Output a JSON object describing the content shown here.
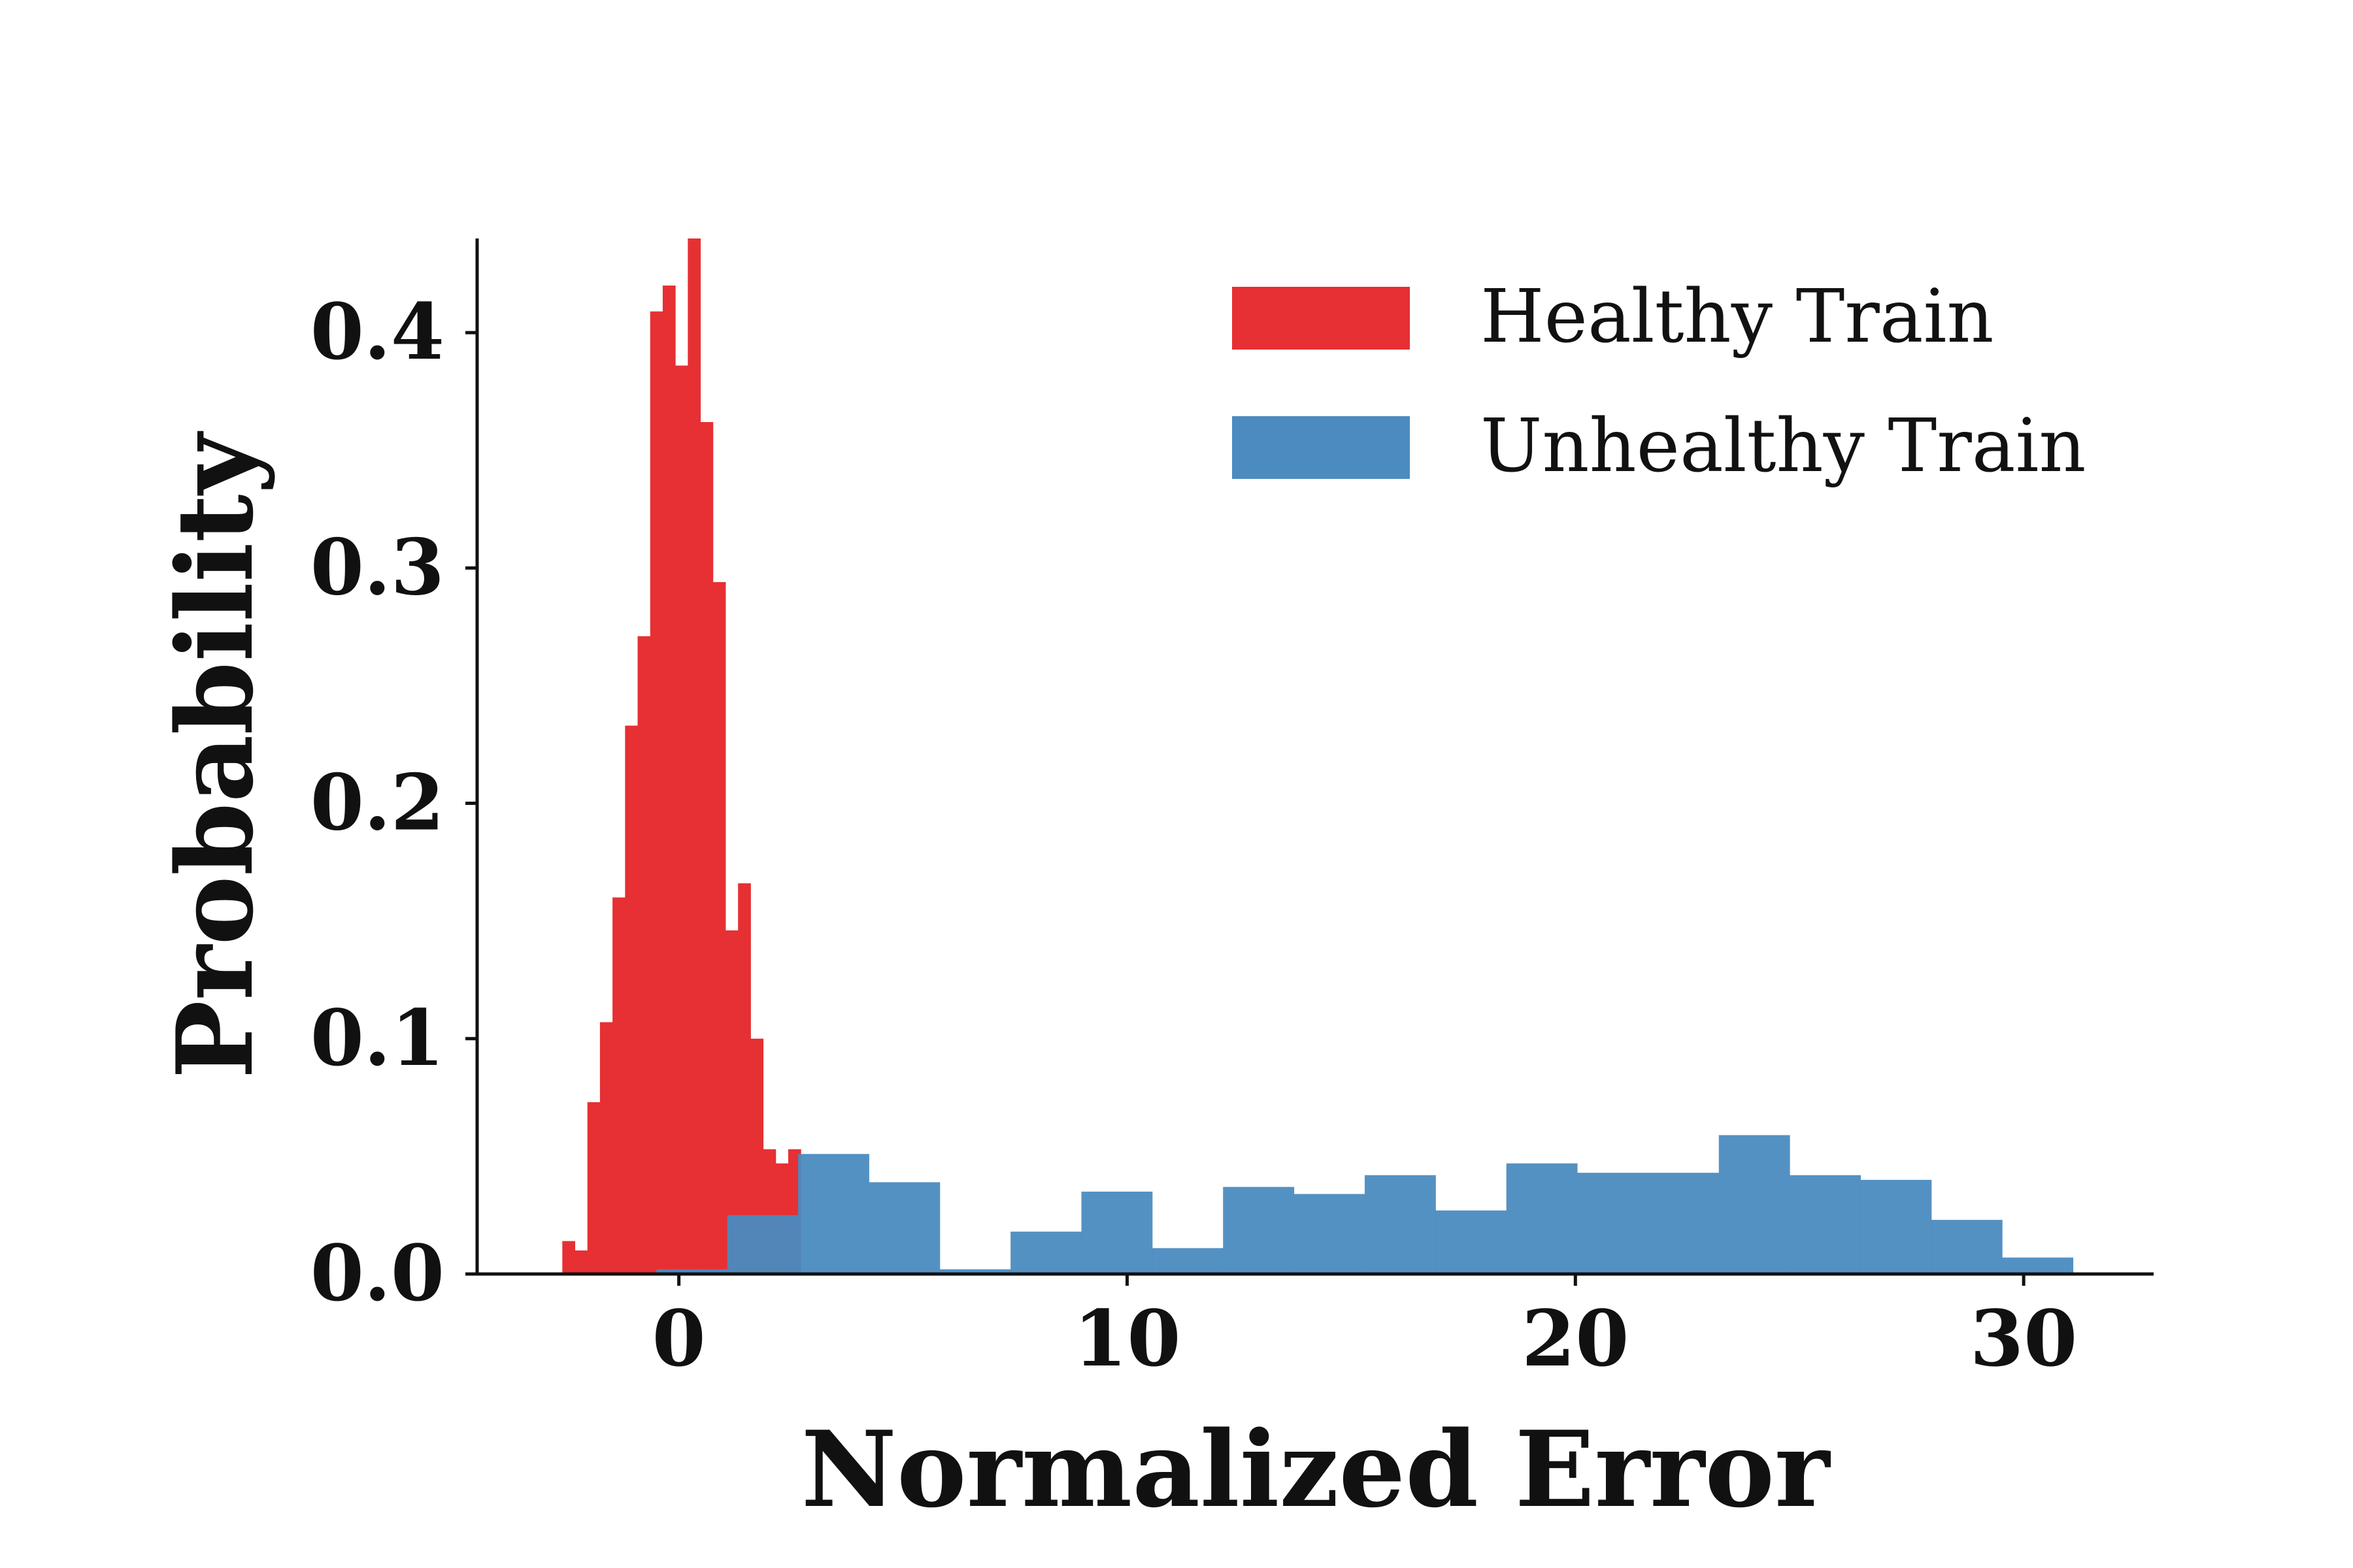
{
  "chart_data": {
    "type": "bar",
    "subtype": "histogram",
    "xlabel": "Normalized Error",
    "ylabel": "Probability",
    "xlim": [
      -4.5,
      32.9
    ],
    "ylim": [
      0,
      0.44
    ],
    "xticks": [
      0,
      10,
      20,
      30
    ],
    "xtick_labels": [
      "0",
      "10",
      "20",
      "30"
    ],
    "yticks": [
      0.0,
      0.1,
      0.2,
      0.3,
      0.4
    ],
    "ytick_labels": [
      "0.0",
      "0.1",
      "0.2",
      "0.3",
      "0.4"
    ],
    "legend": {
      "position": "top-right"
    },
    "grid": false,
    "series": [
      {
        "name": "Healthy Train",
        "color": "#e63033",
        "bin_edges": [
          -2.6,
          -2.32,
          -2.04,
          -1.76,
          -1.48,
          -1.2,
          -0.92,
          -0.64,
          -0.36,
          -0.08,
          0.2,
          0.48,
          0.76,
          1.04,
          1.32,
          1.6,
          1.88,
          2.16,
          2.44,
          2.72
        ],
        "values": [
          0.014,
          0.01,
          0.073,
          0.107,
          0.16,
          0.233,
          0.271,
          0.409,
          0.42,
          0.386,
          0.44,
          0.362,
          0.294,
          0.146,
          0.166,
          0.1,
          0.053,
          0.047,
          0.053
        ]
      },
      {
        "name": "Unhealthy Train",
        "color": "#4b8bc0",
        "bin_edges": [
          -0.5,
          1.08,
          2.66,
          4.24,
          5.82,
          7.4,
          8.98,
          10.56,
          12.14,
          13.72,
          15.3,
          16.88,
          18.46,
          20.04,
          21.62,
          23.2,
          24.78,
          26.36,
          27.94,
          29.52,
          31.1
        ],
        "values": [
          0.002,
          0.025,
          0.051,
          0.039,
          0.002,
          0.018,
          0.035,
          0.011,
          0.037,
          0.034,
          0.042,
          0.027,
          0.047,
          0.043,
          0.043,
          0.059,
          0.042,
          0.04,
          0.023,
          0.007
        ]
      }
    ]
  }
}
